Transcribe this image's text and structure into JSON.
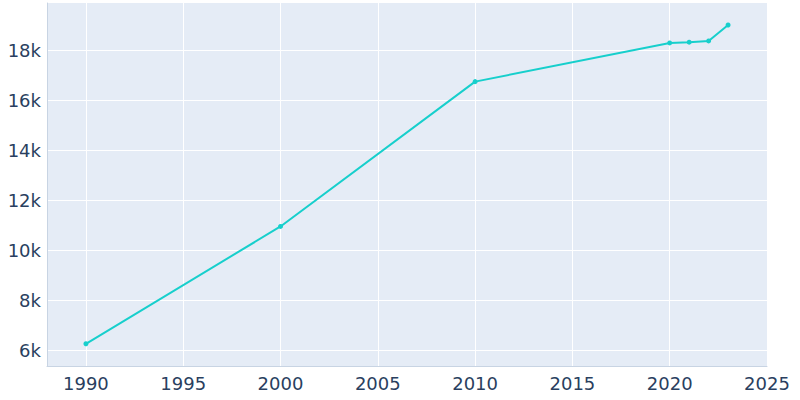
{
  "chart_data": {
    "type": "line",
    "x": [
      1990,
      2000,
      2010,
      2020,
      2021,
      2022,
      2023
    ],
    "values": [
      6250,
      10950,
      16750,
      18300,
      18330,
      18380,
      19020
    ],
    "color": "#17cfcc",
    "marker": "circle",
    "xlim": [
      1988,
      2025
    ],
    "xticks": [
      1990,
      1995,
      2000,
      2005,
      2010,
      2015,
      2020,
      2025
    ],
    "ylim": [
      5360,
      19900
    ],
    "yticks": [
      {
        "value": 6000,
        "label": "6k"
      },
      {
        "value": 8000,
        "label": "8k"
      },
      {
        "value": 10000,
        "label": "10k"
      },
      {
        "value": 12000,
        "label": "12k"
      },
      {
        "value": 14000,
        "label": "14k"
      },
      {
        "value": 16000,
        "label": "16k"
      },
      {
        "value": 18000,
        "label": "18k"
      }
    ],
    "grid": true
  }
}
